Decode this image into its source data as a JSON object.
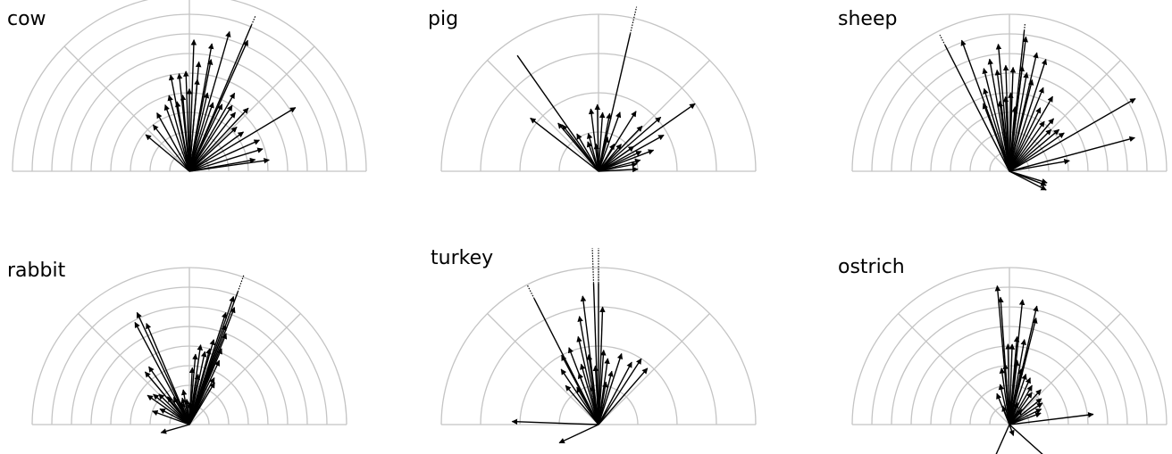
{
  "chart_data": [
    {
      "type": "polar-vector",
      "title": "cow",
      "rings": 9,
      "ring_step_px": 22,
      "angle_range_deg": [
        0,
        180
      ],
      "vectors": [
        {
          "angle": 88,
          "length": 6.7
        },
        {
          "angle": 80,
          "length": 6.6
        },
        {
          "angle": 74,
          "length": 7.4
        },
        {
          "angle": 67,
          "length": 8.6,
          "clipped": true
        },
        {
          "angle": 66,
          "length": 7.3
        },
        {
          "angle": 85,
          "length": 5.6
        },
        {
          "angle": 79,
          "length": 5.8
        },
        {
          "angle": 92,
          "length": 5.1
        },
        {
          "angle": 96,
          "length": 5.0
        },
        {
          "angle": 101,
          "length": 5.0
        },
        {
          "angle": 110,
          "length": 3.6
        },
        {
          "angle": 119,
          "length": 3.4
        },
        {
          "angle": 128,
          "length": 3.0
        },
        {
          "angle": 140,
          "length": 2.9
        },
        {
          "angle": 105,
          "length": 4.0
        },
        {
          "angle": 100,
          "length": 3.6
        },
        {
          "angle": 95,
          "length": 3.9
        },
        {
          "angle": 90,
          "length": 4.2
        },
        {
          "angle": 85,
          "length": 4.7
        },
        {
          "angle": 77,
          "length": 4.1
        },
        {
          "angle": 71,
          "length": 3.7
        },
        {
          "angle": 64,
          "length": 3.8
        },
        {
          "angle": 60,
          "length": 4.6
        },
        {
          "angle": 57,
          "length": 4.0
        },
        {
          "angle": 52,
          "length": 3.8
        },
        {
          "angle": 47,
          "length": 4.4
        },
        {
          "angle": 43,
          "length": 3.3
        },
        {
          "angle": 36,
          "length": 3.4
        },
        {
          "angle": 31,
          "length": 6.3
        },
        {
          "angle": 24,
          "length": 3.9
        },
        {
          "angle": 17,
          "length": 3.9
        },
        {
          "angle": 10,
          "length": 3.4
        },
        {
          "angle": 8,
          "length": 4.1
        }
      ]
    },
    {
      "type": "polar-vector",
      "title": "pig",
      "rings": 4,
      "ring_step_px": 44,
      "angle_range_deg": [
        0,
        180
      ],
      "vectors": [
        {
          "angle": 77,
          "length": 4.3,
          "clipped": true
        },
        {
          "angle": 125,
          "length": 3.6,
          "clipped": true
        },
        {
          "angle": 142,
          "length": 2.2
        },
        {
          "angle": 130,
          "length": 1.6
        },
        {
          "angle": 128,
          "length": 1.5
        },
        {
          "angle": 97,
          "length": 1.6
        },
        {
          "angle": 91,
          "length": 1.7
        },
        {
          "angle": 86,
          "length": 1.5
        },
        {
          "angle": 79,
          "length": 1.5
        },
        {
          "angle": 70,
          "length": 1.6
        },
        {
          "angle": 58,
          "length": 1.8
        },
        {
          "angle": 46,
          "length": 1.6
        },
        {
          "angle": 41,
          "length": 2.1
        },
        {
          "angle": 35,
          "length": 3.0
        },
        {
          "angle": 29,
          "length": 1.9
        },
        {
          "angle": 21,
          "length": 1.5
        },
        {
          "angle": 15,
          "length": 1.1
        },
        {
          "angle": 11,
          "length": 1.0
        },
        {
          "angle": 3,
          "length": 1.0
        },
        {
          "angle": 110,
          "length": 0.8
        },
        {
          "angle": 95,
          "length": 0.7
        },
        {
          "angle": 75,
          "length": 0.9
        },
        {
          "angle": 60,
          "length": 0.8
        },
        {
          "angle": 50,
          "length": 0.9
        },
        {
          "angle": 35,
          "length": 1.1
        },
        {
          "angle": 25,
          "length": 1.2
        },
        {
          "angle": 120,
          "length": 1.1
        },
        {
          "angle": 105,
          "length": 1.0
        }
      ]
    },
    {
      "type": "polar-vector",
      "title": "sheep",
      "rings": 8,
      "ring_step_px": 22,
      "angle_range_deg": [
        0,
        180
      ],
      "vectors": [
        {
          "angle": 117,
          "length": 7.8,
          "clipped": true
        },
        {
          "angle": 84,
          "length": 7.6,
          "clipped": true
        },
        {
          "angle": 110,
          "length": 7.1
        },
        {
          "angle": 83,
          "length": 6.9
        },
        {
          "angle": 77,
          "length": 6.2
        },
        {
          "angle": 72,
          "length": 6.0
        },
        {
          "angle": 95,
          "length": 6.5
        },
        {
          "angle": 100,
          "length": 5.8
        },
        {
          "angle": 104,
          "length": 5.4
        },
        {
          "angle": 107,
          "length": 4.4
        },
        {
          "angle": 111,
          "length": 3.7
        },
        {
          "angle": 97,
          "length": 5.2
        },
        {
          "angle": 92,
          "length": 5.4
        },
        {
          "angle": 88,
          "length": 5.3
        },
        {
          "angle": 83,
          "length": 5.4
        },
        {
          "angle": 80,
          "length": 5.1
        },
        {
          "angle": 76,
          "length": 4.8
        },
        {
          "angle": 89,
          "length": 4.0
        },
        {
          "angle": 93,
          "length": 3.8
        },
        {
          "angle": 98,
          "length": 3.6
        },
        {
          "angle": 85,
          "length": 3.3
        },
        {
          "angle": 68,
          "length": 4.6
        },
        {
          "angle": 64,
          "length": 3.6
        },
        {
          "angle": 60,
          "length": 4.4
        },
        {
          "angle": 55,
          "length": 3.1
        },
        {
          "angle": 50,
          "length": 3.5
        },
        {
          "angle": 45,
          "length": 3.0
        },
        {
          "angle": 40,
          "length": 3.3
        },
        {
          "angle": 35,
          "length": 3.4
        },
        {
          "angle": 30,
          "length": 7.4
        },
        {
          "angle": 15,
          "length": 6.6
        },
        {
          "angle": 10,
          "length": 3.1
        },
        {
          "angle": -17,
          "length": 2.0
        },
        {
          "angle": -27,
          "length": 2.1
        },
        {
          "angle": -21,
          "length": 2.0
        }
      ]
    },
    {
      "type": "polar-vector",
      "title": "rabbit",
      "rings": 8,
      "ring_step_px": 22,
      "angle_range_deg": [
        0,
        180
      ],
      "vectors": [
        {
          "angle": 70,
          "length": 8.1,
          "clipped": true
        },
        {
          "angle": 71,
          "length": 6.9
        },
        {
          "angle": 69,
          "length": 6.4
        },
        {
          "angle": 72,
          "length": 6.0
        },
        {
          "angle": 70,
          "length": 5.4
        },
        {
          "angle": 68,
          "length": 5.0
        },
        {
          "angle": 74,
          "length": 4.5
        },
        {
          "angle": 75,
          "length": 4.0
        },
        {
          "angle": 67,
          "length": 4.2
        },
        {
          "angle": 78,
          "length": 3.8
        },
        {
          "angle": 82,
          "length": 4.1
        },
        {
          "angle": 85,
          "length": 3.6
        },
        {
          "angle": 87,
          "length": 2.9
        },
        {
          "angle": 80,
          "length": 2.6
        },
        {
          "angle": 65,
          "length": 3.6
        },
        {
          "angle": 62,
          "length": 2.7
        },
        {
          "angle": 59,
          "length": 2.5
        },
        {
          "angle": 115,
          "length": 6.3
        },
        {
          "angle": 113,
          "length": 5.6
        },
        {
          "angle": 118,
          "length": 5.9
        },
        {
          "angle": 125,
          "length": 3.6
        },
        {
          "angle": 130,
          "length": 3.5
        },
        {
          "angle": 140,
          "length": 2.4
        },
        {
          "angle": 135,
          "length": 2.2
        },
        {
          "angle": 145,
          "length": 2.6
        },
        {
          "angle": 152,
          "length": 1.7
        },
        {
          "angle": 160,
          "length": 2.0
        },
        {
          "angle": -164,
          "length": 1.5
        },
        {
          "angle": 100,
          "length": 1.8
        },
        {
          "angle": 105,
          "length": 1.4
        },
        {
          "angle": 120,
          "length": 1.6
        },
        {
          "angle": 128,
          "length": 1.8
        },
        {
          "angle": 90,
          "length": 1.1
        },
        {
          "angle": 96,
          "length": 1.3
        },
        {
          "angle": 110,
          "length": 1.2
        }
      ]
    },
    {
      "type": "polar-vector",
      "title": "turkey",
      "rings": 4,
      "ring_step_px": 44,
      "angle_range_deg": [
        0,
        180
      ],
      "vectors": [
        {
          "angle": 90,
          "length": 4.5,
          "clipped": true
        },
        {
          "angle": 92,
          "length": 4.5,
          "clipped": true
        },
        {
          "angle": 117,
          "length": 4.0,
          "clipped": true
        },
        {
          "angle": 97,
          "length": 3.3
        },
        {
          "angle": 88,
          "length": 3.0
        },
        {
          "angle": 100,
          "length": 2.8
        },
        {
          "angle": 103,
          "length": 2.3
        },
        {
          "angle": 111,
          "length": 2.1
        },
        {
          "angle": 118,
          "length": 2.0
        },
        {
          "angle": 124,
          "length": 1.7
        },
        {
          "angle": 106,
          "length": 1.6
        },
        {
          "angle": 98,
          "length": 1.8
        },
        {
          "angle": 93,
          "length": 1.5
        },
        {
          "angle": 86,
          "length": 1.9
        },
        {
          "angle": 82,
          "length": 1.7
        },
        {
          "angle": 76,
          "length": 1.4
        },
        {
          "angle": 72,
          "length": 1.9
        },
        {
          "angle": 62,
          "length": 1.8
        },
        {
          "angle": 57,
          "length": 2.0
        },
        {
          "angle": 49,
          "length": 1.9
        },
        {
          "angle": 111,
          "length": 1.4
        },
        {
          "angle": 120,
          "length": 1.1
        },
        {
          "angle": 100,
          "length": 1.0
        },
        {
          "angle": 80,
          "length": 1.1
        },
        {
          "angle": 178,
          "length": 2.2
        },
        {
          "angle": -155,
          "length": 1.1
        },
        {
          "angle": 130,
          "length": 1.3
        }
      ]
    },
    {
      "type": "polar-vector",
      "title": "ostrich",
      "rings": 8,
      "ring_step_px": 22,
      "angle_range_deg": [
        0,
        180
      ],
      "vectors": [
        {
          "angle": 95,
          "length": 7.1
        },
        {
          "angle": 94,
          "length": 6.5
        },
        {
          "angle": 84,
          "length": 6.4
        },
        {
          "angle": 77,
          "length": 6.2
        },
        {
          "angle": 76,
          "length": 5.6
        },
        {
          "angle": 80,
          "length": 4.4
        },
        {
          "angle": 85,
          "length": 4.5
        },
        {
          "angle": 88,
          "length": 4.1
        },
        {
          "angle": 91,
          "length": 4.1
        },
        {
          "angle": 94,
          "length": 3.1
        },
        {
          "angle": 98,
          "length": 2.9
        },
        {
          "angle": 103,
          "length": 2.1
        },
        {
          "angle": 112,
          "length": 1.7
        },
        {
          "angle": 83,
          "length": 3.3
        },
        {
          "angle": 78,
          "length": 2.9
        },
        {
          "angle": 72,
          "length": 2.7
        },
        {
          "angle": 66,
          "length": 2.6
        },
        {
          "angle": 60,
          "length": 2.3
        },
        {
          "angle": 55,
          "length": 2.0
        },
        {
          "angle": 48,
          "length": 2.4
        },
        {
          "angle": 39,
          "length": 2.1
        },
        {
          "angle": 33,
          "length": 2.0
        },
        {
          "angle": 26,
          "length": 1.8
        },
        {
          "angle": 20,
          "length": 1.7
        },
        {
          "angle": 7,
          "length": 4.3
        },
        {
          "angle": 90,
          "length": 1.2
        },
        {
          "angle": 70,
          "length": 1.2
        },
        {
          "angle": 50,
          "length": 1.0
        },
        {
          "angle": 110,
          "length": 1.0
        },
        {
          "angle": -42,
          "length": 2.8
        },
        {
          "angle": -114,
          "length": 2.5
        },
        {
          "angle": -70,
          "length": 0.6
        }
      ]
    }
  ]
}
